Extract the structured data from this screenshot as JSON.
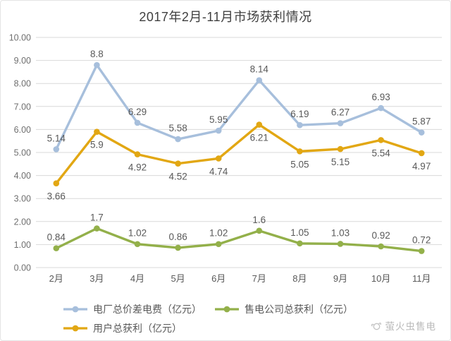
{
  "title": "2017年2月-11月市场获利情况",
  "watermark": {
    "label": "萤火虫售电"
  },
  "colors": {
    "grid": "#d9d9d9",
    "axis_text": "#6f6f6f",
    "data_label_text": "#595959",
    "title_text": "#3f3f3f",
    "legend_text": "#595959",
    "watermark_text": "#b9b9b9"
  },
  "chart_data": {
    "type": "line",
    "title": "2017年2月-11月市场获利情况",
    "categories": [
      "2月",
      "3月",
      "4月",
      "5月",
      "6月",
      "7月",
      "8月",
      "9月",
      "10月",
      "11月"
    ],
    "series": [
      {
        "name": "电厂总价差电费（亿元）",
        "color": "#a7bfdc",
        "values": [
          5.14,
          8.8,
          6.29,
          5.58,
          5.95,
          8.14,
          6.19,
          6.27,
          6.93,
          5.87
        ],
        "data_labels": "above"
      },
      {
        "name": "售电公司总获利（亿元）",
        "color": "#93b04a",
        "values": [
          0.84,
          1.7,
          1.02,
          0.86,
          1.02,
          1.6,
          1.05,
          1.03,
          0.92,
          0.72
        ],
        "data_labels": "above"
      },
      {
        "name": "用户总获利（亿元）",
        "color": "#e2a713",
        "values": [
          3.66,
          5.9,
          4.92,
          4.52,
          4.74,
          6.21,
          5.05,
          5.15,
          5.54,
          4.97
        ],
        "data_labels": "below"
      }
    ],
    "ylim": [
      0,
      10
    ],
    "ytick_step": 1,
    "ytick_labels": [
      "0.00",
      "1.00",
      "2.00",
      "3.00",
      "4.00",
      "5.00",
      "6.00",
      "7.00",
      "8.00",
      "9.00",
      "10.00"
    ],
    "grid": true,
    "legend_position": "bottom",
    "legend_rows": [
      [
        0,
        1
      ],
      [
        2
      ]
    ]
  }
}
